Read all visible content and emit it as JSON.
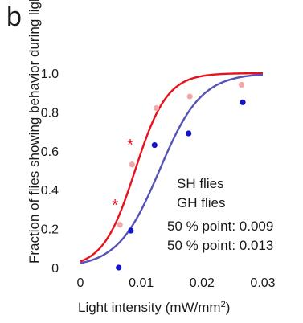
{
  "panel_letter": "b",
  "chart_data": {
    "type": "scatter",
    "ylabel": "Fraction of flies showing behavior during light",
    "xlabel_main": "Light intensity (mW/mm",
    "xlabel_sup": "2",
    "xlabel_end": ")",
    "xlim": [
      0,
      0.03
    ],
    "ylim": [
      0,
      1.0
    ],
    "x_ticks": [
      0,
      0.01,
      0.02,
      0.03
    ],
    "x_tick_labels": [
      "0",
      "0.01",
      "0.02",
      "0.03"
    ],
    "y_ticks": [
      0,
      0.2,
      0.4,
      0.6,
      0.8,
      1.0
    ],
    "y_tick_labels": [
      "0",
      "0.2",
      "0.4",
      "0.6",
      "0.8",
      "1.0"
    ],
    "series": [
      {
        "name": "SH flies",
        "color_points": "#f4a7a7",
        "color_curve": "#e8111c",
        "x": [
          0.0065,
          0.0085,
          0.0125,
          0.018,
          0.0265
        ],
        "y": [
          0.22,
          0.53,
          0.82,
          0.88,
          0.94
        ],
        "fit_midpoint": 0.009,
        "fit_slope": 380
      },
      {
        "name": "GH flies",
        "color_points": "#1313c9",
        "color_curve": "#5454b4",
        "x": [
          0.0063,
          0.0083,
          0.0122,
          0.0178,
          0.0267
        ],
        "y": [
          0.0,
          0.19,
          0.63,
          0.69,
          0.85
        ],
        "fit_midpoint": 0.013,
        "fit_slope": 290
      }
    ],
    "significance": [
      {
        "label": "*",
        "x": 0.0057,
        "y": 0.33
      },
      {
        "label": "*",
        "x": 0.0082,
        "y": 0.64
      }
    ],
    "annotations": [
      "50 % point: 0.009",
      "50 % point: 0.013"
    ],
    "asterisk_color": "#e8111c"
  }
}
